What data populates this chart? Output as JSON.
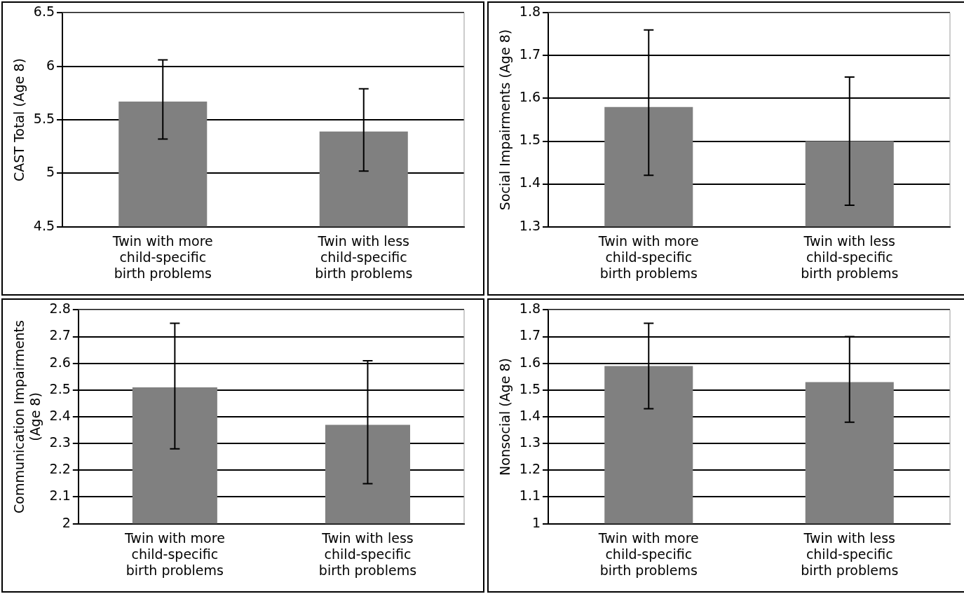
{
  "chart_data": [
    {
      "type": "bar",
      "ylabel": "CAST Total (Age 8)",
      "categories": [
        "Twin with more child-specific birth problems",
        "Twin with less child-specific birth problems"
      ],
      "values": [
        5.67,
        5.39
      ],
      "errors": [
        [
          5.32,
          6.06
        ],
        [
          5.02,
          5.79
        ]
      ],
      "color": "#808080",
      "ylim": [
        4.5,
        6.5
      ],
      "yticks": [
        4.5,
        5,
        5.5,
        6,
        6.5
      ],
      "grid": "y",
      "legend": false
    },
    {
      "type": "bar",
      "ylabel": "Social Impairments (Age 8)",
      "categories": [
        "Twin with more child-specific birth problems",
        "Twin with less child-specific birth problems"
      ],
      "values": [
        1.58,
        1.5
      ],
      "errors": [
        [
          1.42,
          1.76
        ],
        [
          1.35,
          1.65
        ]
      ],
      "color": "#808080",
      "ylim": [
        1.3,
        1.8
      ],
      "yticks": [
        1.3,
        1.4,
        1.5,
        1.6,
        1.7,
        1.8
      ],
      "grid": "y",
      "legend": false
    },
    {
      "type": "bar",
      "ylabel": "Communication Impairments (Age 8)",
      "categories": [
        "Twin with more child-specific birth problems",
        "Twin with less child-specific birth problems"
      ],
      "values": [
        2.51,
        2.37
      ],
      "errors": [
        [
          2.28,
          2.75
        ],
        [
          2.15,
          2.61
        ]
      ],
      "color": "#808080",
      "ylim": [
        2,
        2.8
      ],
      "yticks": [
        2,
        2.1,
        2.2,
        2.3,
        2.4,
        2.5,
        2.6,
        2.7,
        2.8
      ],
      "grid": "y",
      "legend": false
    },
    {
      "type": "bar",
      "ylabel": "Nonsocial (Age 8)",
      "categories": [
        "Twin with more child-specific birth problems",
        "Twin with less child-specific birth problems"
      ],
      "values": [
        1.59,
        1.53
      ],
      "errors": [
        [
          1.43,
          1.75
        ],
        [
          1.38,
          1.7
        ]
      ],
      "color": "#808080",
      "ylim": [
        1,
        1.8
      ],
      "yticks": [
        1,
        1.1,
        1.2,
        1.3,
        1.4,
        1.5,
        1.6,
        1.7,
        1.8
      ],
      "grid": "y",
      "legend": false
    }
  ]
}
